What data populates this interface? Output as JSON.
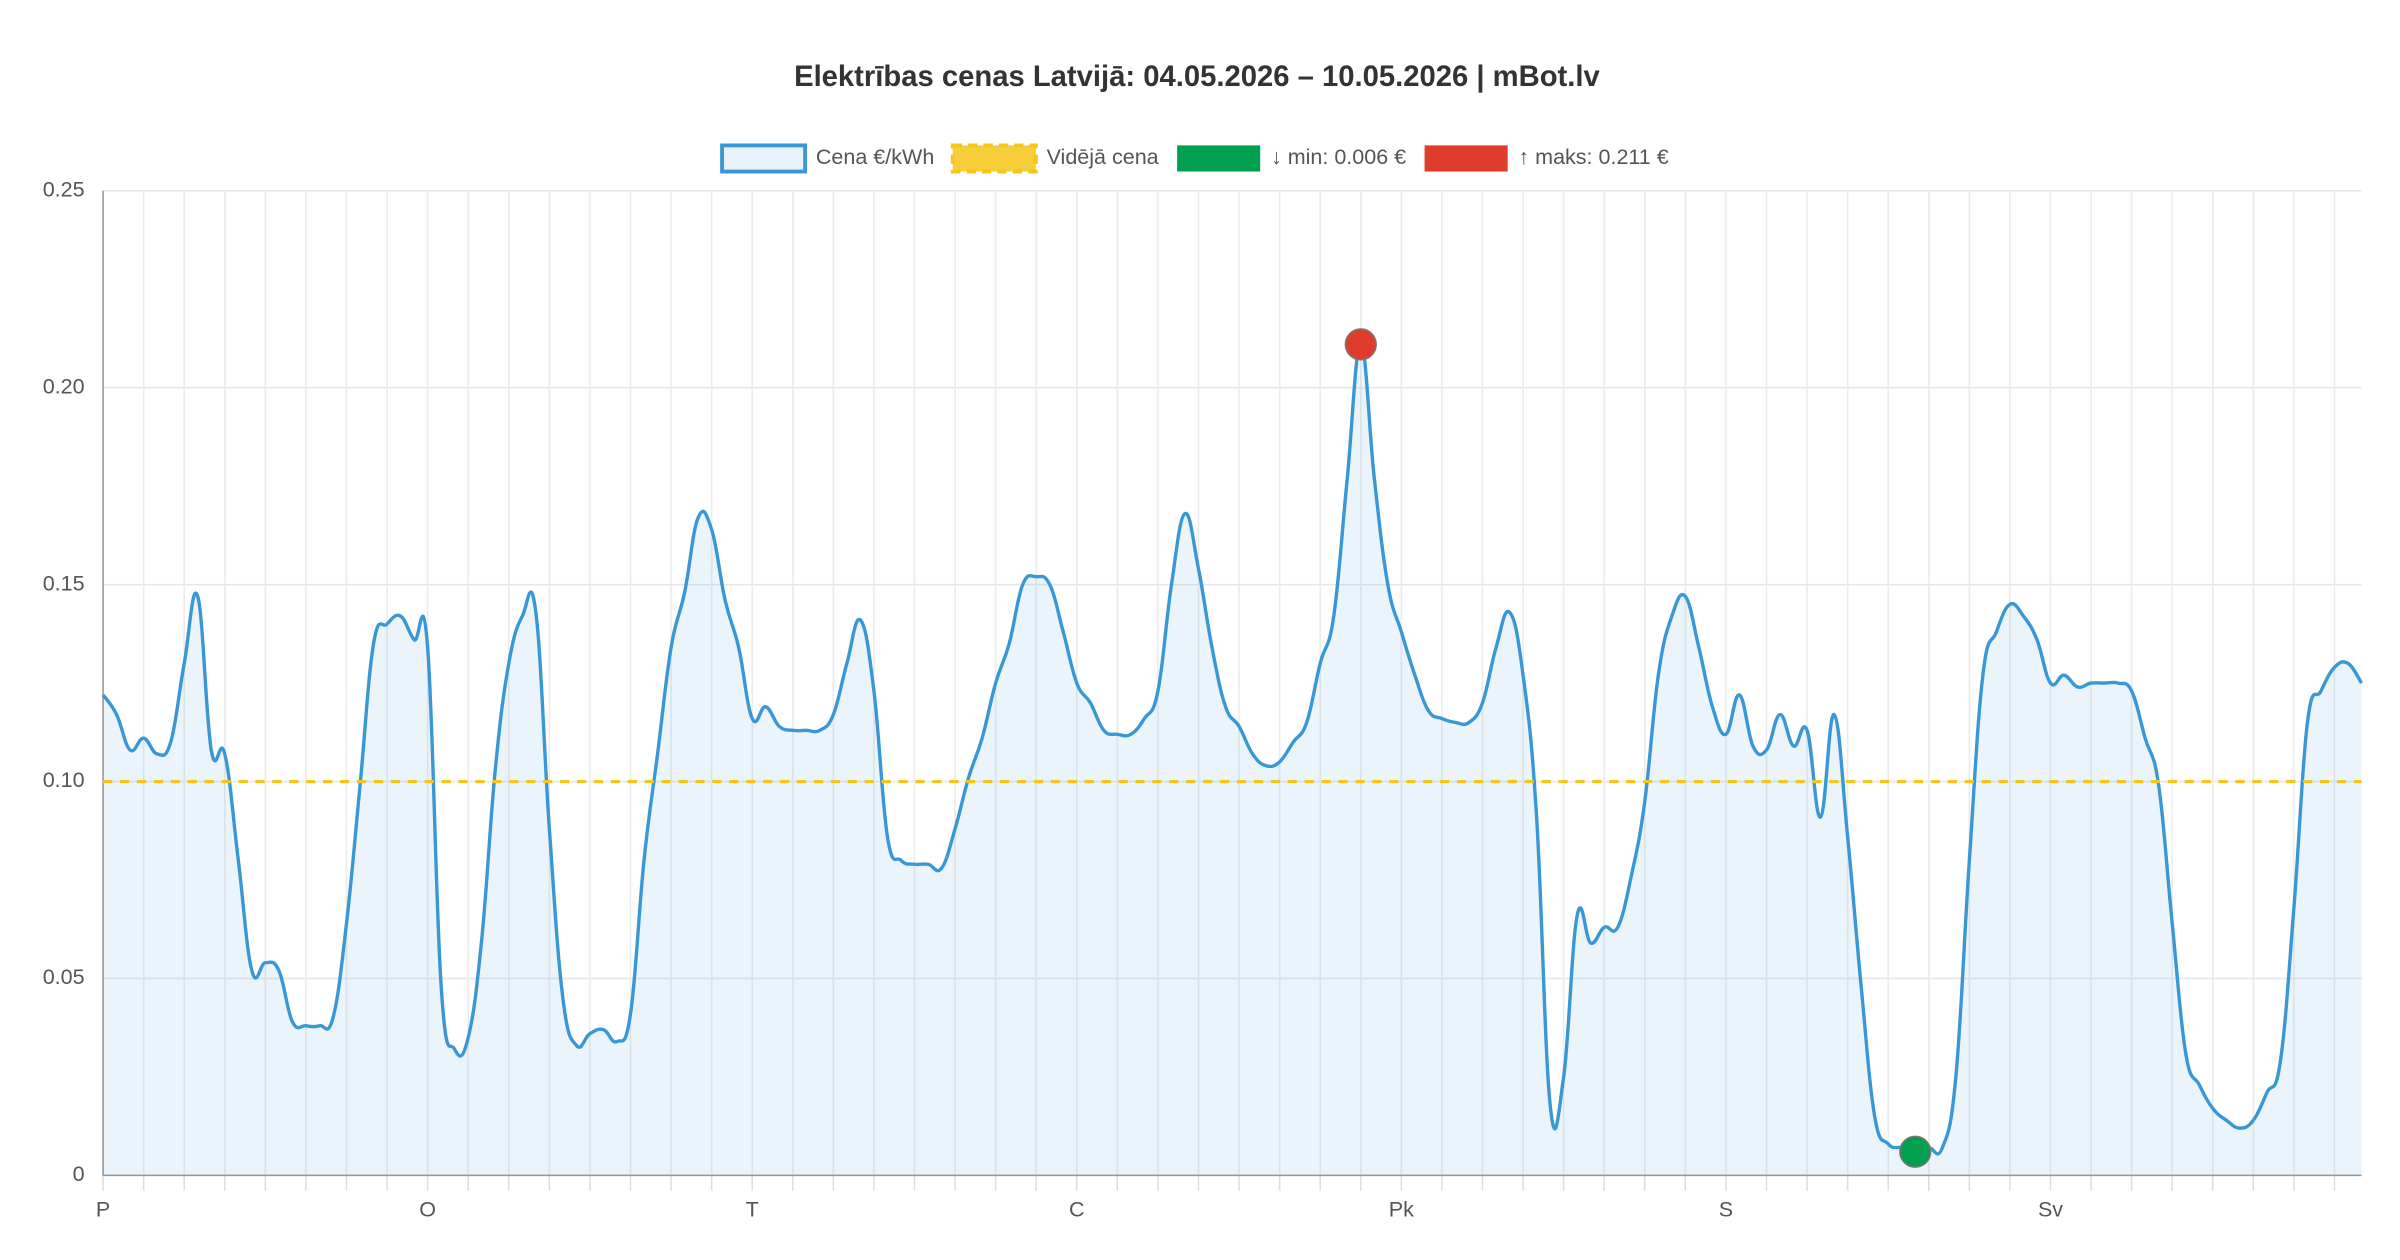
{
  "chart_data": {
    "type": "line",
    "title": "Elektrības cenas Latvijā: 04.05.2026 – 10.05.2026 | mBot.lv",
    "categories": [
      "P",
      null,
      null,
      null,
      null,
      null,
      null,
      null,
      null,
      null,
      null,
      null,
      null,
      null,
      null,
      null,
      null,
      null,
      null,
      null,
      null,
      null,
      null,
      null,
      "O",
      null,
      null,
      null,
      null,
      null,
      null,
      null,
      null,
      null,
      null,
      null,
      null,
      null,
      null,
      null,
      null,
      null,
      null,
      null,
      null,
      null,
      null,
      null,
      "T",
      null,
      null,
      null,
      null,
      null,
      null,
      null,
      null,
      null,
      null,
      null,
      null,
      null,
      null,
      null,
      null,
      null,
      null,
      null,
      null,
      null,
      null,
      null,
      "C",
      null,
      null,
      null,
      null,
      null,
      null,
      null,
      null,
      null,
      null,
      null,
      null,
      null,
      null,
      null,
      null,
      null,
      null,
      null,
      null,
      null,
      null,
      null,
      "Pk",
      null,
      null,
      null,
      null,
      null,
      null,
      null,
      null,
      null,
      null,
      null,
      null,
      null,
      null,
      null,
      null,
      null,
      null,
      null,
      null,
      null,
      null,
      null,
      "S",
      null,
      null,
      null,
      null,
      null,
      null,
      null,
      null,
      null,
      null,
      null,
      null,
      null,
      null,
      null,
      null,
      null,
      null,
      null,
      null,
      null,
      null,
      null,
      "Sv",
      null,
      null,
      null,
      null,
      null,
      null,
      null,
      null,
      null,
      null,
      null,
      null,
      null,
      null,
      null,
      null,
      null,
      null,
      null,
      null,
      null,
      null,
      null
    ],
    "series": [
      {
        "name": "Cena €/kWh",
        "color": "#3a97d6",
        "values": [
          0.122,
          0.117,
          0.108,
          0.111,
          0.107,
          0.11,
          0.13,
          0.147,
          0.108,
          0.107,
          0.08,
          0.052,
          0.054,
          0.052,
          0.039,
          0.038,
          0.038,
          0.04,
          0.064,
          0.099,
          0.135,
          0.14,
          0.142,
          0.136,
          0.134,
          0.048,
          0.032,
          0.035,
          0.06,
          0.103,
          0.13,
          0.142,
          0.143,
          0.088,
          0.045,
          0.033,
          0.036,
          0.037,
          0.034,
          0.041,
          0.08,
          0.107,
          0.134,
          0.148,
          0.167,
          0.164,
          0.146,
          0.134,
          0.116,
          0.119,
          0.114,
          0.113,
          0.113,
          0.113,
          0.117,
          0.13,
          0.141,
          0.123,
          0.086,
          0.08,
          0.079,
          0.079,
          0.078,
          0.088,
          0.101,
          0.111,
          0.125,
          0.135,
          0.15,
          0.152,
          0.15,
          0.138,
          0.125,
          0.12,
          0.113,
          0.112,
          0.112,
          0.116,
          0.123,
          0.15,
          0.168,
          0.154,
          0.134,
          0.119,
          0.114,
          0.107,
          0.104,
          0.105,
          0.11,
          0.115,
          0.13,
          0.142,
          0.177,
          0.211,
          0.177,
          0.15,
          0.138,
          0.127,
          0.118,
          0.116,
          0.115,
          0.115,
          0.12,
          0.134,
          0.143,
          0.127,
          0.091,
          0.018,
          0.025,
          0.066,
          0.059,
          0.063,
          0.063,
          0.076,
          0.095,
          0.127,
          0.142,
          0.147,
          0.134,
          0.119,
          0.112,
          0.122,
          0.109,
          0.108,
          0.117,
          0.109,
          0.113,
          0.091,
          0.117,
          0.086,
          0.048,
          0.015,
          0.008,
          0.007,
          0.006,
          0.007,
          0.007,
          0.025,
          0.08,
          0.127,
          0.138,
          0.145,
          0.142,
          0.136,
          0.125,
          0.127,
          0.124,
          0.125,
          0.125,
          0.125,
          0.123,
          0.111,
          0.099,
          0.064,
          0.031,
          0.023,
          0.017,
          0.014,
          0.012,
          0.014,
          0.021,
          0.029,
          0.068,
          0.115,
          0.123,
          0.129,
          0.13,
          0.125
        ]
      }
    ],
    "average": {
      "name": "Vidējā cena",
      "value": 0.1,
      "color": "#f5c518"
    },
    "min": {
      "name": "↓ min: 0.006 €",
      "value": 0.006,
      "color": "#00a050"
    },
    "max": {
      "name": "↑ maks: 0.211 €",
      "value": 0.211,
      "color": "#e03c2c"
    },
    "ylim": [
      0,
      0.25
    ],
    "yticks": [
      0,
      0.05,
      {
        "value": 0.1,
        "label": "0.10"
      },
      0.15,
      {
        "value": 0.2,
        "label": "0.20"
      },
      0.25
    ],
    "grid": true
  }
}
